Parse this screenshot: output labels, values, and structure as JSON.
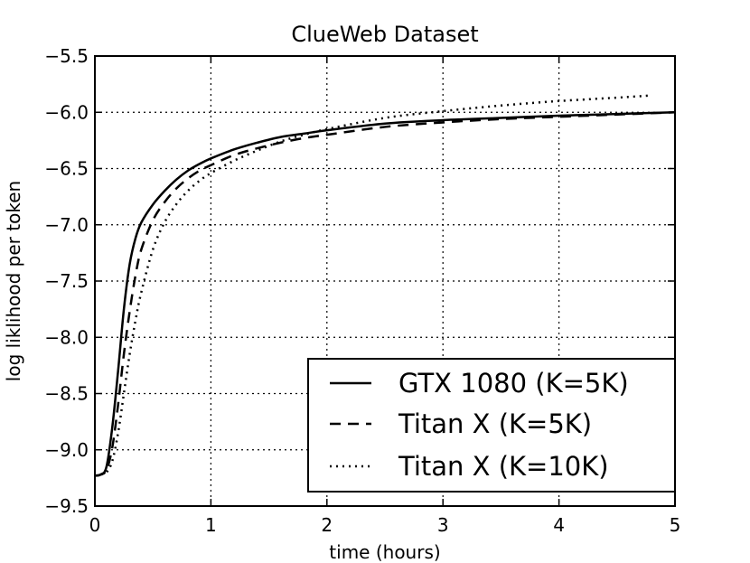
{
  "chart_data": {
    "type": "line",
    "title": "ClueWeb Dataset",
    "xlabel": "time (hours)",
    "ylabel": "log liklihood per token",
    "xlim": [
      0,
      5
    ],
    "ylim": [
      -9.5,
      -5.5
    ],
    "x_ticks": [
      0,
      1,
      2,
      3,
      4,
      5
    ],
    "x_tick_labels": [
      "0",
      "1",
      "2",
      "3",
      "4",
      "5"
    ],
    "y_ticks": [
      -5.5,
      -6.0,
      -6.5,
      -7.0,
      -7.5,
      -8.0,
      -8.5,
      -9.0,
      -9.5
    ],
    "y_tick_labels": [
      "−5.5",
      "−6.0",
      "−6.5",
      "−7.0",
      "−7.5",
      "−8.0",
      "−8.5",
      "−9.0",
      "−9.5"
    ],
    "grid": true,
    "legend_position": "lower-right",
    "series": [
      {
        "name": "GTX 1080 (K=5K)",
        "style": "solid",
        "color": "#000000",
        "x": [
          0,
          0.05,
          0.1,
          0.15,
          0.2,
          0.25,
          0.3,
          0.35,
          0.4,
          0.5,
          0.6,
          0.7,
          0.8,
          0.9,
          1.0,
          1.2,
          1.4,
          1.6,
          1.8,
          2.0,
          2.5,
          3.0,
          3.5,
          4.0,
          4.5,
          5.0
        ],
        "y": [
          -9.23,
          -9.22,
          -9.15,
          -8.8,
          -8.3,
          -7.75,
          -7.35,
          -7.12,
          -6.98,
          -6.82,
          -6.7,
          -6.6,
          -6.52,
          -6.46,
          -6.41,
          -6.33,
          -6.27,
          -6.22,
          -6.19,
          -6.16,
          -6.1,
          -6.07,
          -6.05,
          -6.03,
          -6.015,
          -6.0
        ]
      },
      {
        "name": "Titan X (K=5K)",
        "style": "dashed",
        "color": "#000000",
        "x": [
          0,
          0.05,
          0.1,
          0.15,
          0.2,
          0.25,
          0.3,
          0.35,
          0.4,
          0.5,
          0.6,
          0.7,
          0.8,
          0.9,
          1.0,
          1.2,
          1.4,
          1.6,
          1.8,
          2.0,
          2.5,
          3.0,
          3.5,
          4.0,
          4.5,
          5.0
        ],
        "y": [
          -9.23,
          -9.22,
          -9.18,
          -8.98,
          -8.6,
          -8.15,
          -7.77,
          -7.45,
          -7.22,
          -6.96,
          -6.8,
          -6.68,
          -6.59,
          -6.52,
          -6.47,
          -6.38,
          -6.32,
          -6.27,
          -6.23,
          -6.2,
          -6.13,
          -6.09,
          -6.06,
          -6.04,
          -6.02,
          -6.0
        ]
      },
      {
        "name": "Titan X (K=10K)",
        "style": "dotted",
        "color": "#000000",
        "x": [
          0,
          0.05,
          0.1,
          0.15,
          0.2,
          0.25,
          0.3,
          0.35,
          0.4,
          0.5,
          0.6,
          0.7,
          0.8,
          0.9,
          1.0,
          1.2,
          1.4,
          1.6,
          1.8,
          2.0,
          2.5,
          3.0,
          3.5,
          4.0,
          4.5,
          4.8
        ],
        "y": [
          -9.23,
          -9.22,
          -9.2,
          -9.1,
          -8.85,
          -8.5,
          -8.15,
          -7.85,
          -7.6,
          -7.22,
          -6.98,
          -6.82,
          -6.7,
          -6.61,
          -6.54,
          -6.43,
          -6.34,
          -6.26,
          -6.2,
          -6.15,
          -6.05,
          -5.99,
          -5.94,
          -5.9,
          -5.87,
          -5.85
        ]
      }
    ]
  }
}
